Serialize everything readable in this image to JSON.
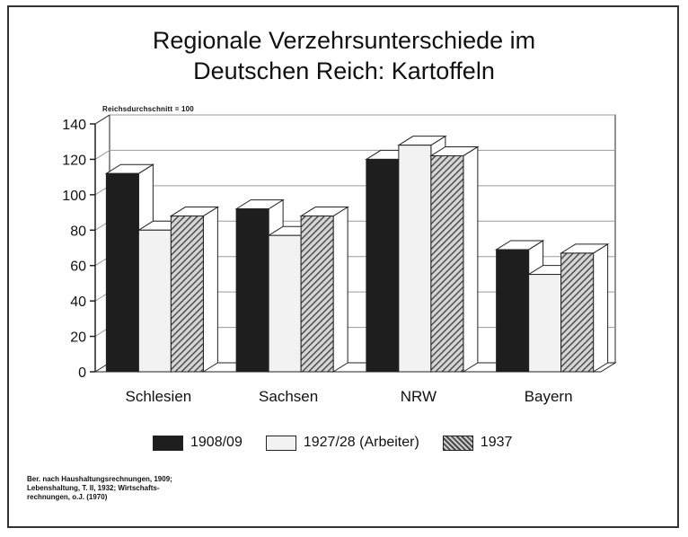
{
  "chart_data": {
    "type": "bar",
    "title": "Regionale Verzehrsunterschiede im",
    "subtitle": "Deutschen Reich: Kartoffeln",
    "unit_note": "Reichsdurchschnitt = 100",
    "categories": [
      "Schlesien",
      "Sachsen",
      "NRW",
      "Bayern"
    ],
    "series": [
      {
        "name": "1908/09",
        "values": [
          112,
          92,
          120,
          69
        ],
        "color": "#1e1e1e"
      },
      {
        "name": "1927/28 (Arbeiter)",
        "values": [
          80,
          77,
          128,
          55
        ],
        "color": "#f2f2f2"
      },
      {
        "name": "1937",
        "values": [
          88,
          88,
          122,
          67
        ],
        "color": "hatched"
      }
    ],
    "y_ticks": [
      "0",
      "20",
      "40",
      "60",
      "80",
      "100",
      "120",
      "140"
    ],
    "ylim": [
      0,
      140
    ],
    "grid": true,
    "legend_position": "bottom",
    "source_note": "Ber. nach Haushaltungsrechnungen, 1909;\nLebenshaltung, T. II, 1932; Wirtschafts-\nrechnungen, o.J. (1970)"
  }
}
